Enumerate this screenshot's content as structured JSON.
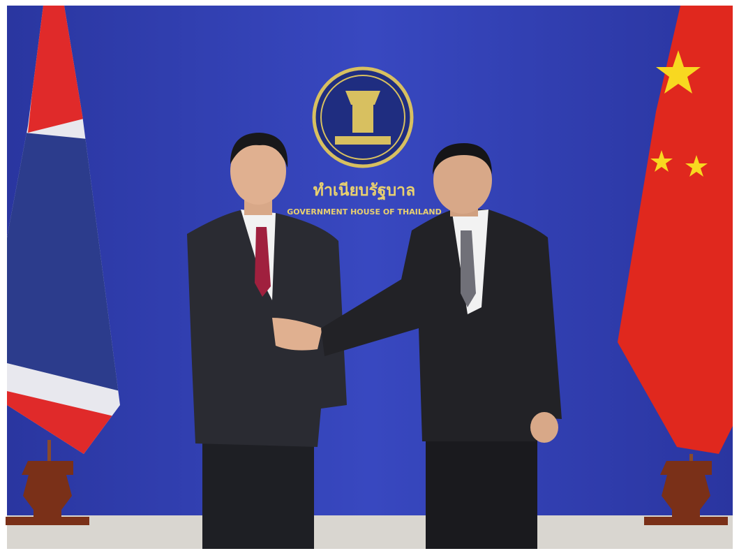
{
  "backdrop": {
    "thai_text": "ทำเนียบรัฐบาล",
    "english_text": "GOVERNMENT HOUSE OF THAILAND"
  }
}
